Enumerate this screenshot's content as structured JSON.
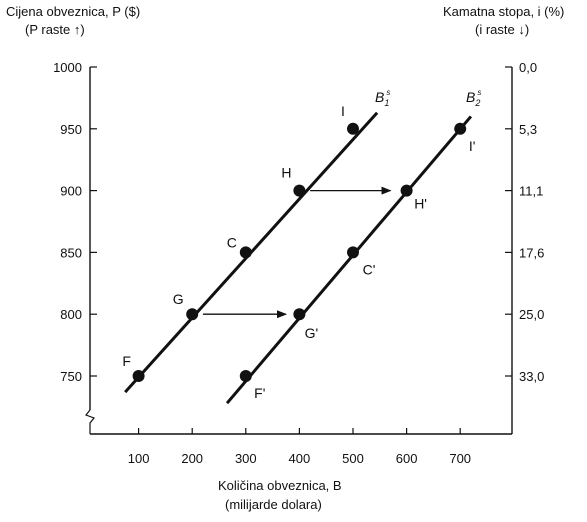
{
  "chart_data": {
    "type": "line",
    "left_axis": {
      "title": "Cijena obveznica, P ($)",
      "subtitle": "(P raste ↑)",
      "ticks": [
        1000,
        950,
        900,
        850,
        800,
        750
      ],
      "ylim": [
        700,
        1000
      ]
    },
    "right_axis": {
      "title": "Kamatna stopa, i (%)",
      "subtitle": "(i raste ↓)",
      "ticks": [
        "0,0",
        "5,3",
        "11,1",
        "17,6",
        "25,0",
        "33,0"
      ]
    },
    "x_axis": {
      "title": "Količina obveznica, B",
      "subtitle": "(milijarde dolara)",
      "ticks": [
        100,
        200,
        300,
        400,
        500,
        600,
        700
      ],
      "xlim": [
        0,
        750
      ]
    },
    "series": [
      {
        "name": "B1s",
        "label_main": "B",
        "label_sub": "1",
        "label_sup": "s",
        "line": [
          [
            75,
            737
          ],
          [
            545,
            963
          ]
        ],
        "points": [
          {
            "name": "F",
            "x": 100,
            "y": 750
          },
          {
            "name": "G",
            "x": 200,
            "y": 800
          },
          {
            "name": "C",
            "x": 300,
            "y": 850
          },
          {
            "name": "H",
            "x": 400,
            "y": 900
          },
          {
            "name": "I",
            "x": 500,
            "y": 950
          }
        ]
      },
      {
        "name": "B2s",
        "label_main": "B",
        "label_sub": "2",
        "label_sup": "s",
        "line": [
          [
            265,
            728
          ],
          [
            720,
            960
          ]
        ],
        "points": [
          {
            "name": "F'",
            "x": 300,
            "y": 750
          },
          {
            "name": "G'",
            "x": 400,
            "y": 800
          },
          {
            "name": "C'",
            "x": 500,
            "y": 850
          },
          {
            "name": "H'",
            "x": 600,
            "y": 900
          },
          {
            "name": "I'",
            "x": 700,
            "y": 950
          }
        ]
      }
    ],
    "arrows": [
      {
        "from": [
          220,
          800
        ],
        "to": [
          375,
          800
        ]
      },
      {
        "from": [
          420,
          900
        ],
        "to": [
          570,
          900
        ]
      }
    ],
    "colors": {
      "ink": "#111111",
      "background": "#ffffff"
    }
  }
}
